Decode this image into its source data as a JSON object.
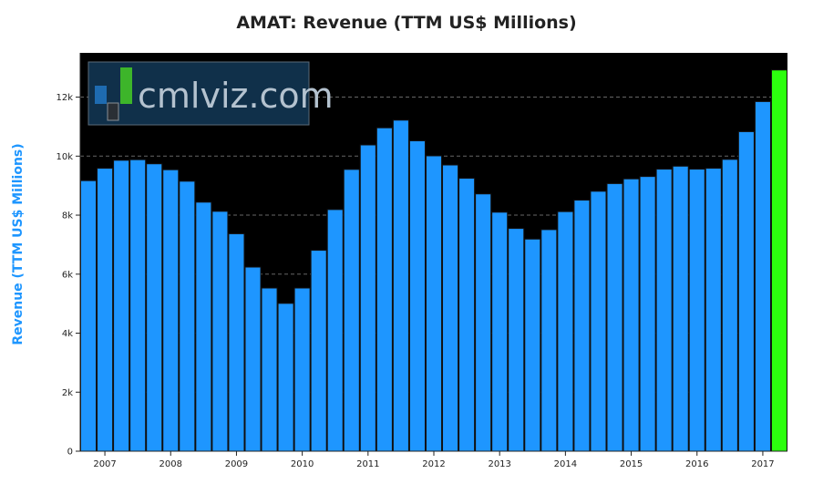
{
  "chart_data": {
    "type": "bar",
    "title": "AMAT: Revenue (TTM US$ Millions)",
    "xlabel": "",
    "ylabel": "Revenue (TTM US$ Millions)",
    "ylim": [
      0,
      13500
    ],
    "yticks": [
      0,
      2000,
      4000,
      6000,
      8000,
      10000,
      12000
    ],
    "ytick_labels": [
      "0",
      "2k",
      "4k",
      "6k",
      "8k",
      "10k",
      "12k"
    ],
    "xtick_labels": [
      "2007",
      "2008",
      "2009",
      "2010",
      "2011",
      "2012",
      "2013",
      "2014",
      "2015",
      "2016",
      "2017"
    ],
    "xtick_bar_index": [
      1,
      5,
      9,
      13,
      17,
      21,
      25,
      29,
      33,
      37,
      41
    ],
    "values": [
      9170,
      9590,
      9860,
      9880,
      9740,
      9540,
      9150,
      8440,
      8130,
      7370,
      6240,
      5530,
      5010,
      5530,
      6810,
      8190,
      9550,
      10380,
      10960,
      11220,
      10520,
      10010,
      9700,
      9250,
      8720,
      8100,
      7550,
      7190,
      7510,
      8120,
      8510,
      8810,
      9070,
      9230,
      9310,
      9560,
      9660,
      9560,
      9590,
      9890,
      10830,
      11850,
      12920
    ],
    "highlight_last": true,
    "grid": true,
    "colors": {
      "bar": "#1e96ff",
      "bar_highlight": "#2cff0e",
      "bar_edge": "#111111",
      "plot_background": "#000000",
      "ylabel": "#1e96ff",
      "grid": "#666666"
    }
  },
  "watermark": {
    "text": "cmlviz.com"
  }
}
